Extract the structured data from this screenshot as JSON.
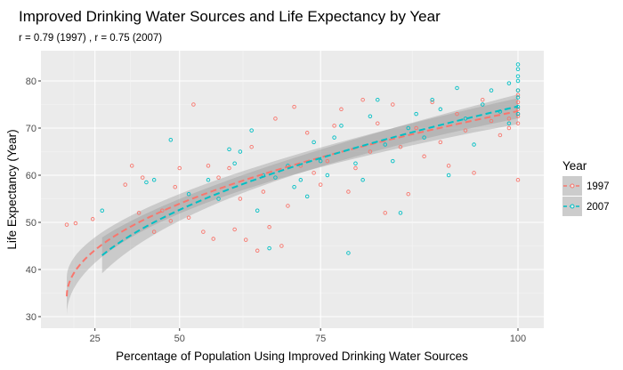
{
  "chart_data": {
    "type": "scatter",
    "title": "Improved Drinking Water Sources and Life Expectancy by Year",
    "subtitle": "r =  0.79 (1997) , r =  0.75 (2007)",
    "xlabel": "Percentage of Population Using Improved Drinking Water Sources",
    "ylabel": "Life Expectancy (Year)",
    "x_scale": "exponential-display",
    "x_ticks": [
      25,
      50,
      75,
      100
    ],
    "y_ticks": [
      30,
      40,
      50,
      60,
      70,
      80
    ],
    "xlim": [
      0,
      103
    ],
    "ylim": [
      28,
      85
    ],
    "grid": true,
    "legend": {
      "title": "Year",
      "placement": "right",
      "entries": [
        "1997",
        "2007"
      ]
    },
    "series": [
      {
        "name": "1997",
        "color": "#F8766D",
        "trend": {
          "x": [
            0,
            100
          ],
          "y": [
            34.3,
            73.6
          ],
          "band_halfwidth_ends": 4.0,
          "band_halfwidth_mid": 2.0
        },
        "points": [
          [
            0,
            49.5
          ],
          [
            14,
            49.8
          ],
          [
            24,
            50.7
          ],
          [
            36,
            58
          ],
          [
            38,
            62
          ],
          [
            40,
            52
          ],
          [
            41,
            59.5
          ],
          [
            44,
            48
          ],
          [
            46,
            52.5
          ],
          [
            48,
            50.3
          ],
          [
            49,
            57.5
          ],
          [
            50,
            61.5
          ],
          [
            52,
            51
          ],
          [
            53,
            75
          ],
          [
            55,
            48
          ],
          [
            56,
            62
          ],
          [
            57,
            46.5
          ],
          [
            58,
            59.5
          ],
          [
            60,
            61.5
          ],
          [
            61,
            48.5
          ],
          [
            62,
            55
          ],
          [
            63,
            46.3
          ],
          [
            64,
            66
          ],
          [
            65,
            44
          ],
          [
            66,
            56.5
          ],
          [
            67,
            49
          ],
          [
            68,
            72
          ],
          [
            69,
            45
          ],
          [
            70,
            53.5
          ],
          [
            71,
            74.5
          ],
          [
            72,
            62
          ],
          [
            73,
            69
          ],
          [
            74,
            60.5
          ],
          [
            75,
            58
          ],
          [
            76,
            63
          ],
          [
            77,
            70.5
          ],
          [
            78,
            74
          ],
          [
            79,
            56.5
          ],
          [
            80,
            61.5
          ],
          [
            81,
            76
          ],
          [
            82,
            65
          ],
          [
            83,
            71
          ],
          [
            84,
            52
          ],
          [
            85,
            75
          ],
          [
            86,
            66
          ],
          [
            87,
            56
          ],
          [
            88,
            70
          ],
          [
            89,
            64
          ],
          [
            90,
            75.5
          ],
          [
            91,
            67
          ],
          [
            92,
            62
          ],
          [
            93,
            73
          ],
          [
            94,
            69.5
          ],
          [
            95,
            60.5
          ],
          [
            96,
            76
          ],
          [
            97,
            71.5
          ],
          [
            98,
            68.5
          ],
          [
            99,
            72
          ],
          [
            99,
            70
          ],
          [
            100,
            74
          ],
          [
            100,
            78
          ],
          [
            100,
            75.5
          ],
          [
            100,
            73
          ],
          [
            100,
            71
          ],
          [
            100,
            59
          ],
          [
            100,
            77
          ],
          [
            100,
            72.5
          ]
        ]
      },
      {
        "name": "2007",
        "color": "#00BFC4",
        "trend": {
          "x": [
            28,
            100
          ],
          "y": [
            43.0,
            74.6
          ],
          "band_halfwidth_ends": 3.8,
          "band_halfwidth_mid": 1.8
        },
        "points": [
          [
            28,
            52.5
          ],
          [
            42,
            58.5
          ],
          [
            44,
            59
          ],
          [
            48,
            67.5
          ],
          [
            52,
            56
          ],
          [
            56,
            59
          ],
          [
            58,
            55
          ],
          [
            60,
            65.5
          ],
          [
            61,
            62.5
          ],
          [
            62,
            65
          ],
          [
            64,
            69.5
          ],
          [
            65,
            52.5
          ],
          [
            66,
            60
          ],
          [
            67,
            44.5
          ],
          [
            68,
            59.5
          ],
          [
            70,
            62
          ],
          [
            71,
            57.5
          ],
          [
            72,
            59
          ],
          [
            73,
            55.5
          ],
          [
            74,
            67
          ],
          [
            75,
            63
          ],
          [
            76,
            60
          ],
          [
            77,
            68
          ],
          [
            78,
            70.5
          ],
          [
            79,
            43.5
          ],
          [
            80,
            62.5
          ],
          [
            81,
            59
          ],
          [
            82,
            72.5
          ],
          [
            83,
            76
          ],
          [
            84,
            66.5
          ],
          [
            85,
            63
          ],
          [
            86,
            52
          ],
          [
            87,
            70
          ],
          [
            88,
            73
          ],
          [
            89,
            68
          ],
          [
            90,
            76
          ],
          [
            91,
            74
          ],
          [
            92,
            60
          ],
          [
            93,
            78.5
          ],
          [
            94,
            72
          ],
          [
            95,
            66.5
          ],
          [
            96,
            75
          ],
          [
            97,
            78
          ],
          [
            98,
            73.5
          ],
          [
            99,
            79.5
          ],
          [
            99,
            71
          ],
          [
            100,
            81
          ],
          [
            100,
            83.5
          ],
          [
            100,
            80
          ],
          [
            100,
            76.5
          ],
          [
            100,
            74.5
          ],
          [
            100,
            73
          ],
          [
            100,
            78
          ],
          [
            100,
            82.5
          ]
        ]
      }
    ]
  }
}
